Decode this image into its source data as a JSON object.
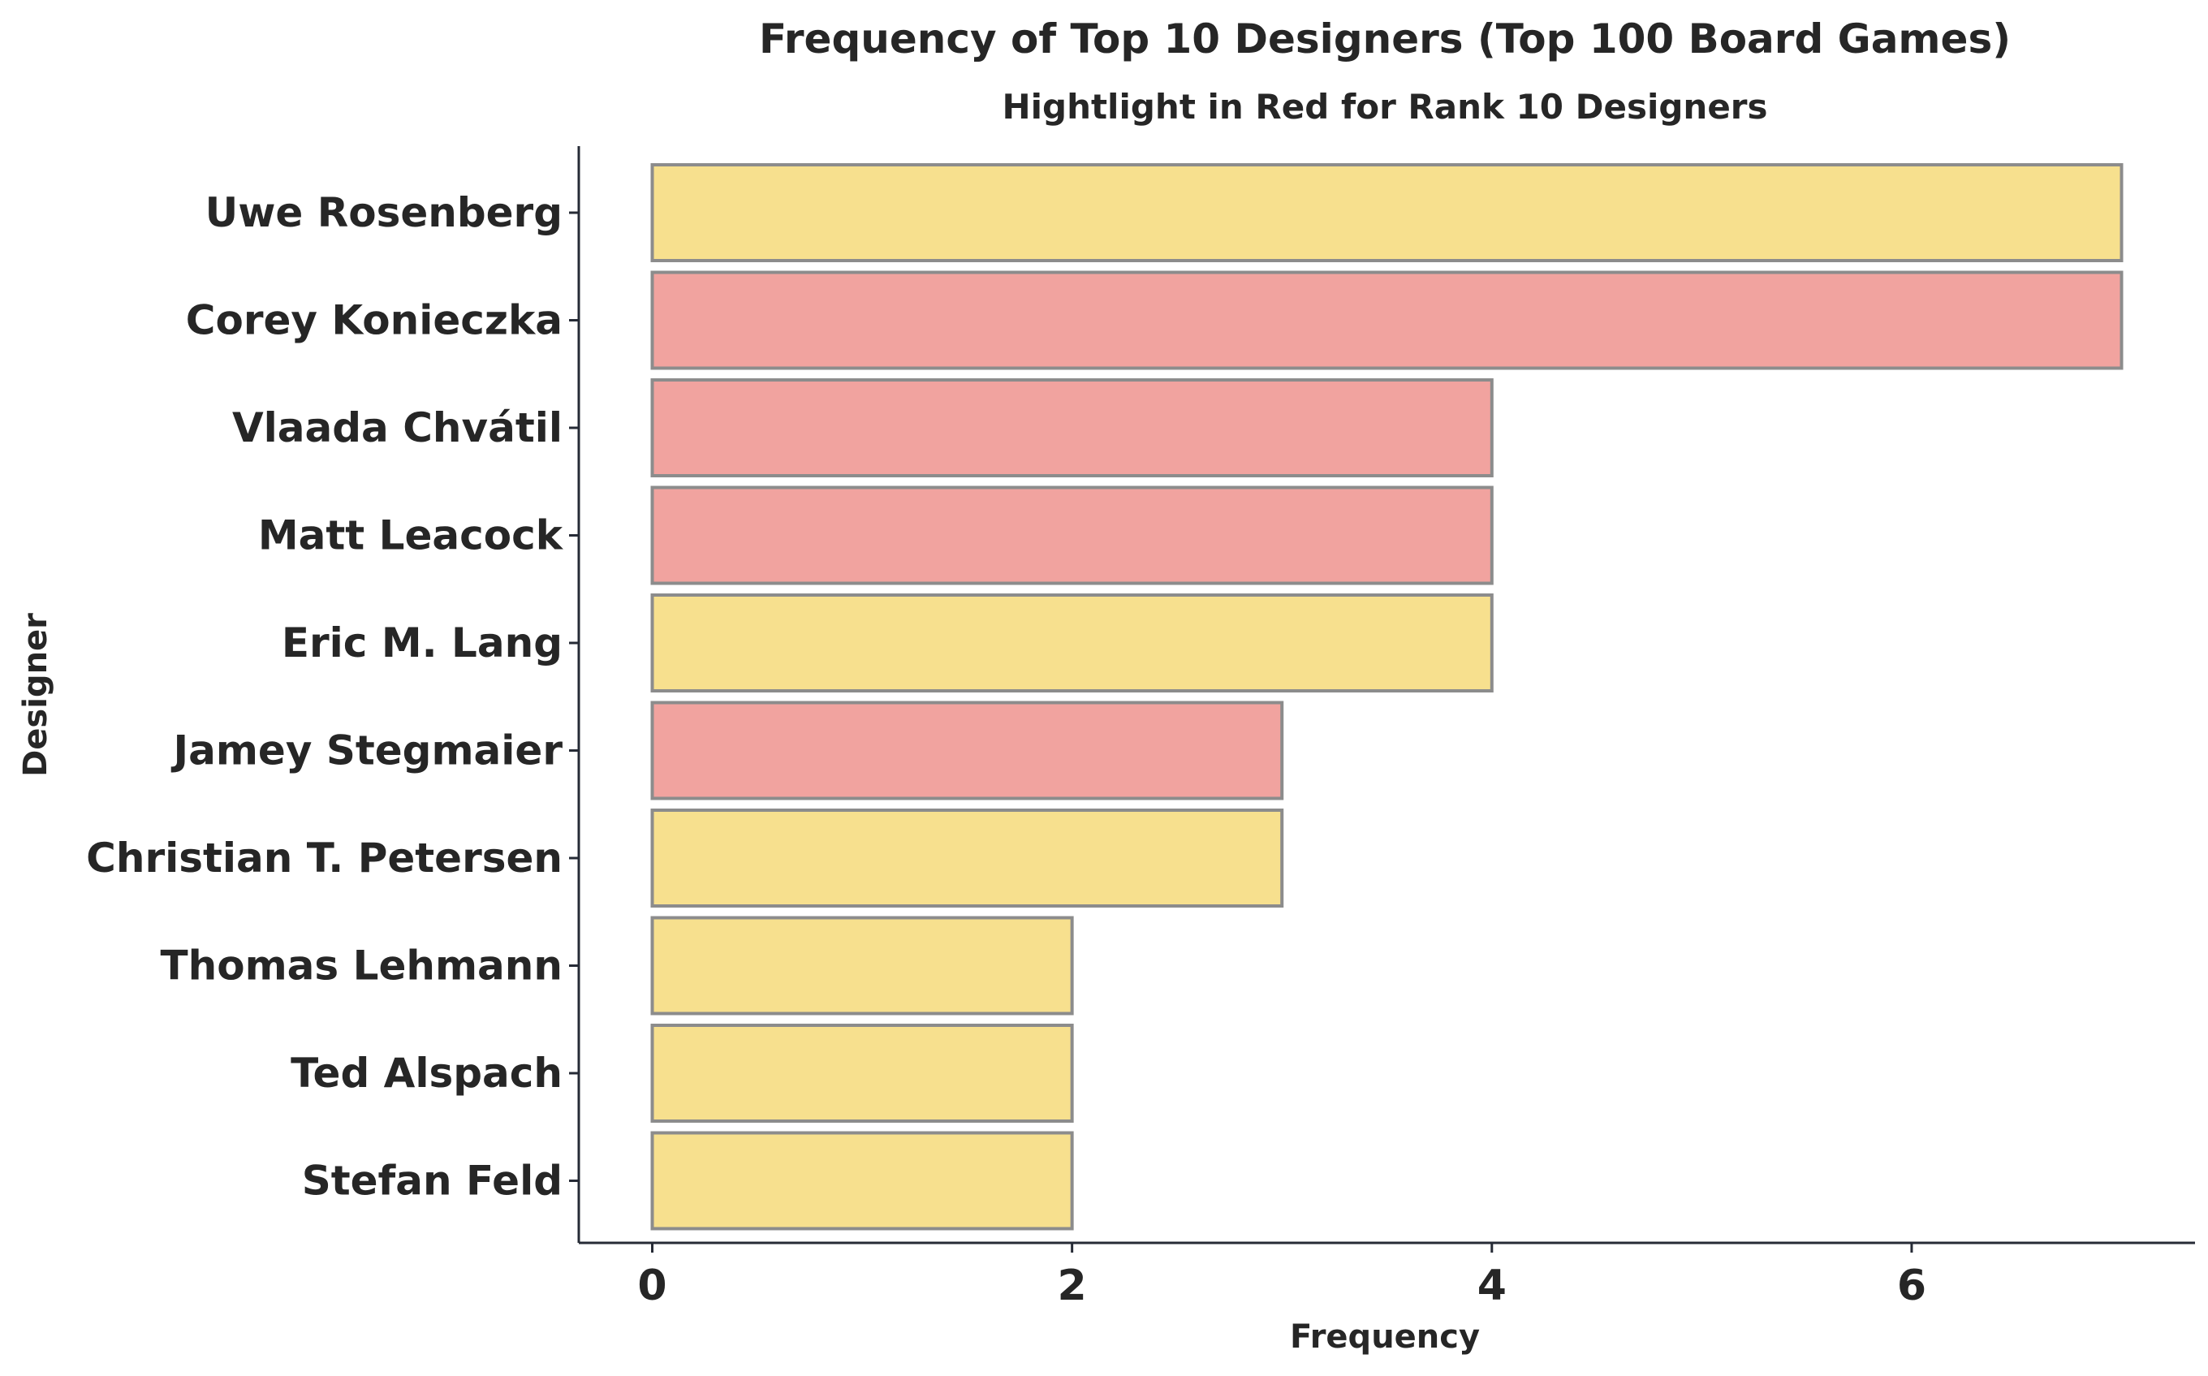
{
  "chart_data": {
    "type": "bar",
    "orientation": "horizontal",
    "title": "Frequency of Top 10 Designers (Top 100 Board Games)",
    "subtitle": "Hightlight in Red for Rank 10 Designers",
    "xlabel": "Frequency",
    "ylabel": "Designer",
    "xlim": [
      -0.35,
      7.35
    ],
    "xticks": [
      0,
      2,
      4,
      6
    ],
    "grid": false,
    "legend": "none",
    "categories": [
      "Uwe Rosenberg",
      "Corey Konieczka",
      "Vlaada Chvátil",
      "Matt Leacock",
      "Eric M. Lang",
      "Jamey Stegmaier",
      "Christian T. Petersen",
      "Thomas Lehmann",
      "Ted Alspach",
      "Stefan Feld"
    ],
    "values": [
      7,
      7,
      4,
      4,
      4,
      3,
      3,
      2,
      2,
      2
    ],
    "highlighted": [
      false,
      true,
      true,
      true,
      false,
      true,
      false,
      false,
      false,
      false
    ],
    "colors": {
      "default": "#f7e08e",
      "highlight": "#f1a39f",
      "bar_edge": "#8c8c8c",
      "axis": "#262b36",
      "text": "#262626"
    }
  }
}
